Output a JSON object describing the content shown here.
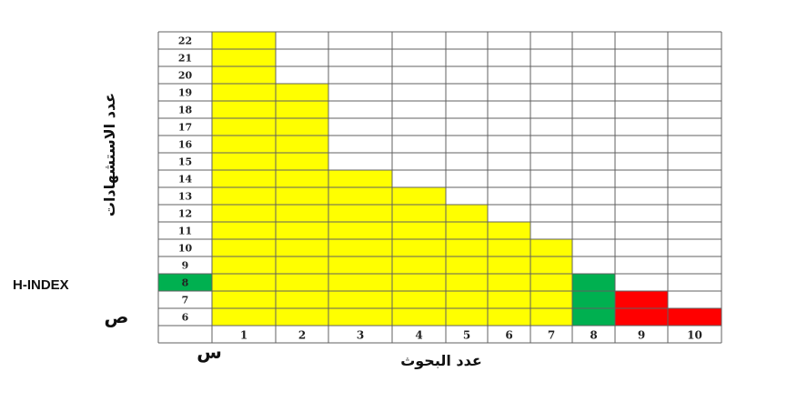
{
  "colors": {
    "citations": "#ffff00",
    "h_index": "#00b050",
    "below_h": "#ff0000",
    "grid": "#606060"
  },
  "chart_data": {
    "type": "bar",
    "categories": [
      "1",
      "2",
      "3",
      "4",
      "5",
      "6",
      "7",
      "8",
      "9",
      "10"
    ],
    "series": [
      {
        "values": [
          22,
          19,
          14,
          13,
          12,
          11,
          10,
          8,
          7,
          6
        ]
      }
    ],
    "ylim": [
      5,
      22
    ],
    "y_ticks": [
      6,
      7,
      8,
      9,
      10,
      11,
      12,
      13,
      14,
      15,
      16,
      17,
      18,
      19,
      20,
      21,
      22
    ],
    "grid": true,
    "xlabel": "عدد البحوث",
    "ylabel": "عدد الاستشهادات",
    "x_symbol": "س",
    "y_symbol": "ص",
    "h_index": {
      "label": "H-INDEX",
      "value": 8
    },
    "bar_colors": [
      "citations",
      "citations",
      "citations",
      "citations",
      "citations",
      "citations",
      "citations",
      "h_index",
      "below_h",
      "below_h"
    ]
  }
}
